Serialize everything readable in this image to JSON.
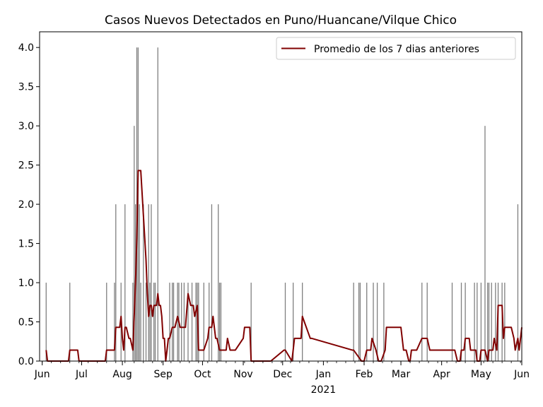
{
  "chart_data": {
    "type": "bar",
    "title": "Casos Nuevos Detectados en Puno/Huancane/Vilque Chico",
    "xlabel": "",
    "ylabel": "",
    "x_range": [
      "2020-05-30",
      "2021-06-01"
    ],
    "ylim": [
      0,
      4.2
    ],
    "y_ticks": [
      "0.0",
      "0.5",
      "1.0",
      "1.5",
      "2.0",
      "2.5",
      "3.0",
      "3.5",
      "4.0"
    ],
    "x_ticks": [
      {
        "date": "2020-06-01",
        "label": "Jun"
      },
      {
        "date": "2020-07-01",
        "label": "Jul"
      },
      {
        "date": "2020-08-01",
        "label": "Aug"
      },
      {
        "date": "2020-09-01",
        "label": "Sep"
      },
      {
        "date": "2020-10-01",
        "label": "Oct"
      },
      {
        "date": "2020-11-01",
        "label": "Nov"
      },
      {
        "date": "2020-12-01",
        "label": "Dec"
      },
      {
        "date": "2021-01-01",
        "label": "Jan",
        "sublabel": "2021"
      },
      {
        "date": "2021-02-01",
        "label": "Feb"
      },
      {
        "date": "2021-03-01",
        "label": "Mar"
      },
      {
        "date": "2021-04-01",
        "label": "Apr"
      },
      {
        "date": "2021-05-01",
        "label": "May"
      },
      {
        "date": "2021-06-01",
        "label": "Jun"
      }
    ],
    "grid": false,
    "legend_position": "top-right",
    "bar_color": "#808080",
    "line_color": "#800000",
    "series": [
      {
        "kind": "bar",
        "dates": [
          "2020-06-04",
          "2020-06-22",
          "2020-07-20",
          "2020-07-26",
          "2020-07-27",
          "2020-07-31",
          "2020-08-03",
          "2020-08-09",
          "2020-08-10",
          "2020-08-11",
          "2020-08-12",
          "2020-08-13",
          "2020-08-14",
          "2020-08-15",
          "2020-08-17",
          "2020-08-19",
          "2020-08-21",
          "2020-08-22",
          "2020-08-23",
          "2020-08-25",
          "2020-08-26",
          "2020-08-28",
          "2020-09-06",
          "2020-09-08",
          "2020-09-09",
          "2020-09-12",
          "2020-09-13",
          "2020-09-15",
          "2020-09-17",
          "2020-09-20",
          "2020-09-23",
          "2020-09-26",
          "2020-09-27",
          "2020-09-28",
          "2020-10-02",
          "2020-10-06",
          "2020-10-08",
          "2020-10-13",
          "2020-10-14",
          "2020-10-15",
          "2020-11-07",
          "2020-12-03",
          "2020-12-09",
          "2020-12-16",
          "2021-01-24",
          "2021-01-28",
          "2021-01-29",
          "2021-02-03",
          "2021-02-08",
          "2021-02-11",
          "2021-02-16",
          "2021-03-17",
          "2021-03-21",
          "2021-04-09",
          "2021-04-16",
          "2021-04-19",
          "2021-04-26",
          "2021-04-28",
          "2021-05-01",
          "2021-05-04",
          "2021-05-06",
          "2021-05-07",
          "2021-05-09",
          "2021-05-12",
          "2021-05-14",
          "2021-05-17",
          "2021-05-19",
          "2021-05-29"
        ],
        "values": [
          1,
          1,
          1,
          1,
          2,
          1,
          2,
          1,
          3,
          2,
          4,
          4,
          2,
          1,
          2,
          1,
          2,
          1,
          2,
          1,
          1,
          4,
          1,
          1,
          1,
          1,
          1,
          1,
          1,
          1,
          1,
          1,
          1,
          1,
          1,
          1,
          2,
          2,
          1,
          1,
          1,
          1,
          1,
          1,
          1,
          1,
          1,
          1,
          1,
          1,
          1,
          1,
          1,
          1,
          1,
          1,
          1,
          1,
          1,
          3,
          1,
          1,
          1,
          1,
          1,
          1,
          1,
          2
        ]
      },
      {
        "kind": "line",
        "name": "Promedio de los 7 dias anteriores",
        "dates": [
          "2020-06-04",
          "2020-06-05",
          "2020-06-21",
          "2020-06-22",
          "2020-06-28",
          "2020-06-29",
          "2020-07-19",
          "2020-07-20",
          "2020-07-26",
          "2020-07-27",
          "2020-07-30",
          "2020-07-31",
          "2020-08-01",
          "2020-08-02",
          "2020-08-03",
          "2020-08-04",
          "2020-08-06",
          "2020-08-07",
          "2020-08-09",
          "2020-08-10",
          "2020-08-11",
          "2020-08-12",
          "2020-08-13",
          "2020-08-15",
          "2020-08-17",
          "2020-08-19",
          "2020-08-20",
          "2020-08-21",
          "2020-08-22",
          "2020-08-23",
          "2020-08-24",
          "2020-08-25",
          "2020-08-27",
          "2020-08-28",
          "2020-08-29",
          "2020-08-30",
          "2020-08-31",
          "2020-09-01",
          "2020-09-02",
          "2020-09-03",
          "2020-09-04",
          "2020-09-05",
          "2020-09-06",
          "2020-09-08",
          "2020-09-10",
          "2020-09-12",
          "2020-09-14",
          "2020-09-18",
          "2020-09-20",
          "2020-09-22",
          "2020-09-24",
          "2020-09-25",
          "2020-09-27",
          "2020-09-28",
          "2020-09-30",
          "2020-10-02",
          "2020-10-05",
          "2020-10-06",
          "2020-10-08",
          "2020-10-09",
          "2020-10-11",
          "2020-10-12",
          "2020-10-14",
          "2020-10-19",
          "2020-10-20",
          "2020-10-22",
          "2020-10-26",
          "2020-11-01",
          "2020-11-02",
          "2020-11-06",
          "2020-11-07",
          "2020-11-13",
          "2020-11-14",
          "2020-11-22",
          "2020-12-02",
          "2020-12-03",
          "2020-12-08",
          "2020-12-09",
          "2020-12-10",
          "2020-12-15",
          "2020-12-16",
          "2020-12-22",
          "2020-12-23",
          "2021-01-23",
          "2021-01-24",
          "2021-01-30",
          "2021-02-01",
          "2021-02-03",
          "2021-02-04",
          "2021-02-06",
          "2021-02-07",
          "2021-02-10",
          "2021-02-12",
          "2021-02-14",
          "2021-02-17",
          "2021-02-18",
          "2021-02-23",
          "2021-02-24",
          "2021-03-01",
          "2021-03-03",
          "2021-03-05",
          "2021-03-07",
          "2021-03-08",
          "2021-03-09",
          "2021-03-11",
          "2021-03-13",
          "2021-03-17",
          "2021-03-21",
          "2021-03-23",
          "2021-03-28",
          "2021-04-08",
          "2021-04-09",
          "2021-04-11",
          "2021-04-13",
          "2021-04-15",
          "2021-04-16",
          "2021-04-18",
          "2021-04-19",
          "2021-04-22",
          "2021-04-23",
          "2021-04-27",
          "2021-04-28",
          "2021-04-30",
          "2021-05-01",
          "2021-05-03",
          "2021-05-04",
          "2021-05-06",
          "2021-05-07",
          "2021-05-10",
          "2021-05-11",
          "2021-05-13",
          "2021-05-14",
          "2021-05-16",
          "2021-05-17",
          "2021-05-18",
          "2021-05-19",
          "2021-05-22",
          "2021-05-24",
          "2021-05-26",
          "2021-05-27",
          "2021-05-29",
          "2021-05-30",
          "2021-06-01"
        ],
        "values": [
          0.14,
          0.0,
          0.0,
          0.14,
          0.14,
          0.0,
          0.0,
          0.14,
          0.14,
          0.43,
          0.43,
          0.57,
          0.29,
          0.14,
          0.43,
          0.43,
          0.29,
          0.29,
          0.14,
          0.57,
          1.0,
          1.57,
          2.43,
          2.43,
          1.86,
          1.29,
          0.86,
          0.57,
          0.71,
          0.71,
          0.57,
          0.71,
          0.71,
          0.86,
          0.71,
          0.71,
          0.57,
          0.29,
          0.29,
          0.0,
          0.14,
          0.29,
          0.29,
          0.43,
          0.43,
          0.57,
          0.43,
          0.43,
          0.86,
          0.71,
          0.71,
          0.57,
          0.71,
          0.14,
          0.14,
          0.14,
          0.29,
          0.43,
          0.43,
          0.57,
          0.29,
          0.29,
          0.14,
          0.14,
          0.29,
          0.14,
          0.14,
          0.29,
          0.43,
          0.43,
          0.0,
          0.0,
          0.0,
          0.0,
          0.14,
          0.14,
          0.0,
          0.14,
          0.29,
          0.29,
          0.57,
          0.29,
          0.29,
          0.14,
          0.14,
          0.0,
          0.0,
          0.14,
          0.14,
          0.14,
          0.29,
          0.14,
          0.0,
          0.0,
          0.14,
          0.43,
          0.43,
          0.43,
          0.43,
          0.14,
          0.14,
          0.0,
          0.0,
          0.14,
          0.14,
          0.14,
          0.29,
          0.29,
          0.14,
          0.14,
          0.14,
          0.14,
          0.14,
          0.0,
          0.0,
          0.14,
          0.14,
          0.29,
          0.29,
          0.14,
          0.14,
          0.0,
          0.0,
          0.14,
          0.14,
          0.14,
          0.0,
          0.14,
          0.14,
          0.29,
          0.14,
          0.71,
          0.71,
          0.71,
          0.29,
          0.43,
          0.43,
          0.43,
          0.29,
          0.14,
          0.29,
          0.14,
          0.43
        ]
      }
    ]
  }
}
